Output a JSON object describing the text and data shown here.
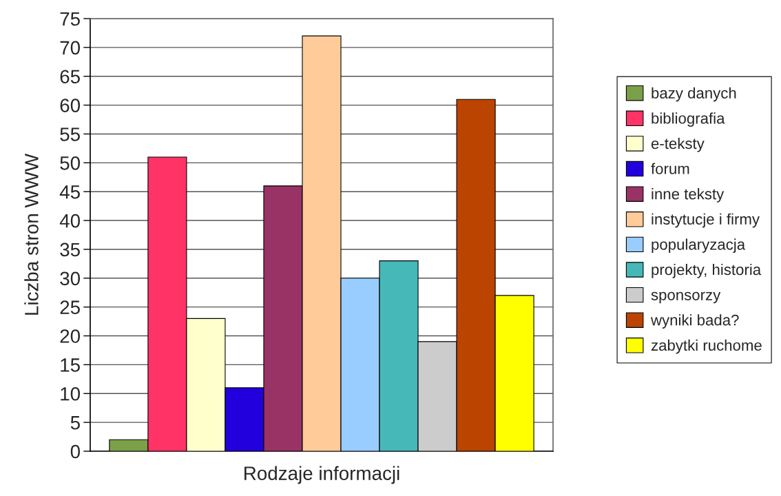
{
  "chart_data": {
    "type": "bar",
    "xlabel": "Rodzaje informacji",
    "ylabel": "Liczba stron WWW",
    "categories": [
      null
    ],
    "series": [
      {
        "name": "bazy danych",
        "color": "#7ba047",
        "values": [
          2
        ]
      },
      {
        "name": "bibliografia",
        "color": "#ff3366",
        "values": [
          51
        ]
      },
      {
        "name": "e-teksty",
        "color": "#ffffcc",
        "values": [
          23
        ]
      },
      {
        "name": "forum",
        "color": "#2200dd",
        "values": [
          11
        ]
      },
      {
        "name": "inne teksty",
        "color": "#993366",
        "values": [
          46
        ]
      },
      {
        "name": "instytucje i firmy",
        "color": "#ffcc99",
        "values": [
          72
        ]
      },
      {
        "name": "popularyzacja",
        "color": "#99ccff",
        "values": [
          30
        ]
      },
      {
        "name": "projekty, historia",
        "color": "#47b8b8",
        "values": [
          33
        ]
      },
      {
        "name": "sponsorzy",
        "color": "#cccccc",
        "values": [
          19
        ]
      },
      {
        "name": "wyniki bada?",
        "color": "#bb4400",
        "values": [
          61
        ]
      },
      {
        "name": "zabytki ruchome",
        "color": "#ffff00",
        "values": [
          27
        ]
      }
    ],
    "ylim": [
      0,
      75
    ],
    "yticks": [
      0,
      5,
      10,
      15,
      20,
      25,
      30,
      35,
      40,
      45,
      50,
      55,
      60,
      65,
      70,
      75
    ],
    "grid": "y",
    "legend": "right"
  }
}
